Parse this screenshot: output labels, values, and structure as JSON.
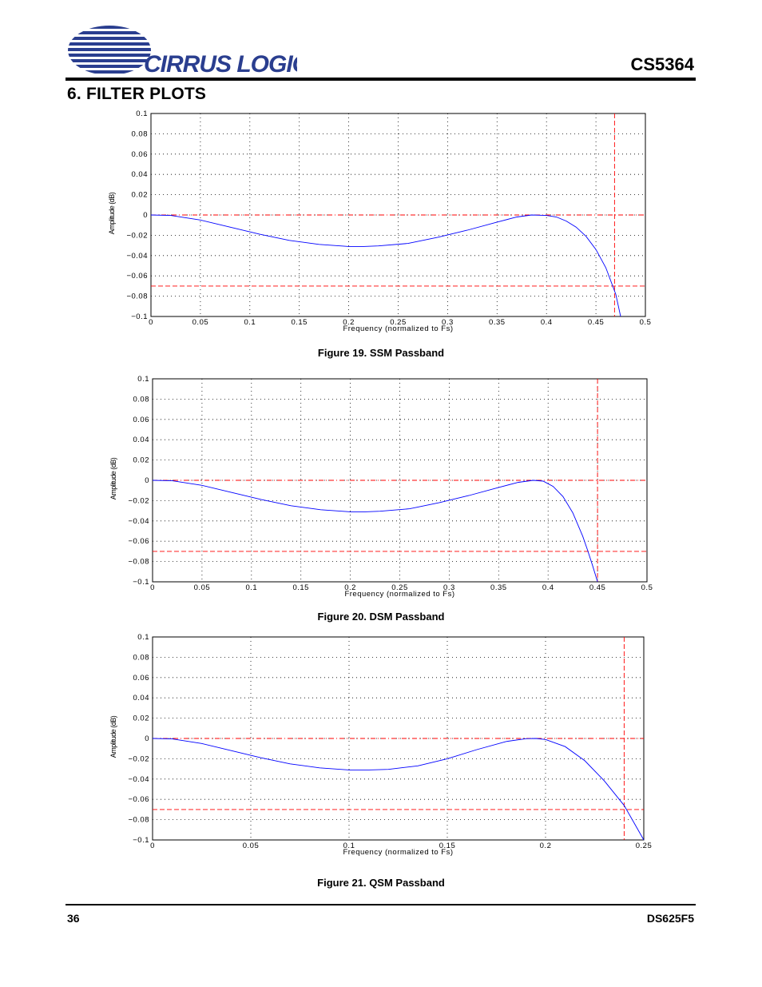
{
  "header": {
    "logo_text": "CIRRUS LOGIC",
    "doc_id": "CS5364"
  },
  "section": {
    "title": "6. FILTER PLOTS"
  },
  "chart_data": [
    {
      "type": "line",
      "caption": "Figure 19.  SSM Passband",
      "xlabel": "Frequency (normalized to Fs)",
      "ylabel": "Amplitude (dB)",
      "xlim": [
        0,
        0.5
      ],
      "ylim": [
        -0.1,
        0.1
      ],
      "xticks": [
        "0",
        "0.05",
        "0.1",
        "0.15",
        "0.2",
        "0.25",
        "0.3",
        "0.35",
        "0.4",
        "0.45",
        "0.5"
      ],
      "yticks": [
        "0.1",
        "0.08",
        "0.06",
        "0.04",
        "0.02",
        "0",
        "−0.02",
        "−0.04",
        "−0.06",
        "−0.08",
        "−0.1"
      ],
      "grid": true,
      "curve": {
        "color": "#0000ff",
        "x": [
          0,
          0.02,
          0.05,
          0.08,
          0.11,
          0.14,
          0.17,
          0.2,
          0.215,
          0.23,
          0.26,
          0.29,
          0.32,
          0.35,
          0.37,
          0.385,
          0.4,
          0.41,
          0.42,
          0.43,
          0.44,
          0.45,
          0.46,
          0.47,
          0.475
        ],
        "y": [
          0,
          -0.0005,
          -0.005,
          -0.012,
          -0.019,
          -0.025,
          -0.029,
          -0.031,
          -0.031,
          -0.0305,
          -0.028,
          -0.022,
          -0.015,
          -0.007,
          -0.002,
          0,
          -0.0005,
          -0.002,
          -0.006,
          -0.012,
          -0.021,
          -0.034,
          -0.052,
          -0.078,
          -0.1
        ]
      },
      "reference_lines": {
        "color": "#ff0000",
        "h_zero": 0,
        "h_limit": -0.07,
        "v_cutoff": 0.4688
      }
    },
    {
      "type": "line",
      "caption": "Figure 20.  DSM Passband",
      "xlabel": "Frequency (normalized to Fs)",
      "ylabel": "Amplitude (dB)",
      "xlim": [
        0,
        0.5
      ],
      "ylim": [
        -0.1,
        0.1
      ],
      "xticks": [
        "0",
        "0.05",
        "0.1",
        "0.15",
        "0.2",
        "0.25",
        "0.3",
        "0.35",
        "0.4",
        "0.45",
        "0.5"
      ],
      "yticks": [
        "0.1",
        "0.08",
        "0.06",
        "0.04",
        "0.02",
        "0",
        "−0.02",
        "−0.04",
        "−0.06",
        "−0.08",
        "−0.1"
      ],
      "grid": true,
      "curve": {
        "color": "#0000ff",
        "x": [
          0,
          0.02,
          0.05,
          0.08,
          0.11,
          0.14,
          0.17,
          0.2,
          0.215,
          0.23,
          0.26,
          0.29,
          0.32,
          0.35,
          0.37,
          0.385,
          0.395,
          0.405,
          0.415,
          0.425,
          0.435,
          0.44,
          0.445,
          0.45
        ],
        "y": [
          0,
          -0.0005,
          -0.005,
          -0.012,
          -0.019,
          -0.025,
          -0.029,
          -0.031,
          -0.031,
          -0.0305,
          -0.028,
          -0.022,
          -0.015,
          -0.007,
          -0.002,
          0,
          -0.0008,
          -0.006,
          -0.016,
          -0.032,
          -0.055,
          -0.069,
          -0.084,
          -0.1
        ]
      },
      "reference_lines": {
        "color": "#ff0000",
        "h_zero": 0,
        "h_limit": -0.07,
        "v_cutoff": 0.45
      }
    },
    {
      "type": "line",
      "caption": "Figure 21.  QSM Passband",
      "xlabel": "Frequency (normalized to Fs)",
      "ylabel": "Amplitude (dB)",
      "xlim": [
        0,
        0.25
      ],
      "ylim": [
        -0.1,
        0.1
      ],
      "xticks": [
        "0",
        "0.05",
        "0.1",
        "0.15",
        "0.2",
        "0.25"
      ],
      "yticks": [
        "0.1",
        "0.08",
        "0.06",
        "0.04",
        "0.02",
        "0",
        "−0.02",
        "−0.04",
        "−0.06",
        "−0.08",
        "−0.1"
      ],
      "grid": true,
      "curve": {
        "color": "#0000ff",
        "x": [
          0,
          0.01,
          0.025,
          0.04,
          0.055,
          0.07,
          0.085,
          0.1,
          0.11,
          0.12,
          0.135,
          0.15,
          0.165,
          0.18,
          0.19,
          0.195,
          0.2,
          0.21,
          0.22,
          0.23,
          0.24,
          0.245,
          0.25
        ],
        "y": [
          0,
          -0.0005,
          -0.005,
          -0.012,
          -0.019,
          -0.025,
          -0.029,
          -0.031,
          -0.031,
          -0.0305,
          -0.027,
          -0.02,
          -0.011,
          -0.003,
          -0.0002,
          0,
          -0.001,
          -0.008,
          -0.022,
          -0.042,
          -0.066,
          -0.083,
          -0.1
        ]
      },
      "reference_lines": {
        "color": "#ff0000",
        "h_zero": 0,
        "h_limit": -0.07,
        "v_cutoff": 0.24
      }
    }
  ],
  "footer": {
    "page_number": "36",
    "doc_code": "DS625F5"
  }
}
